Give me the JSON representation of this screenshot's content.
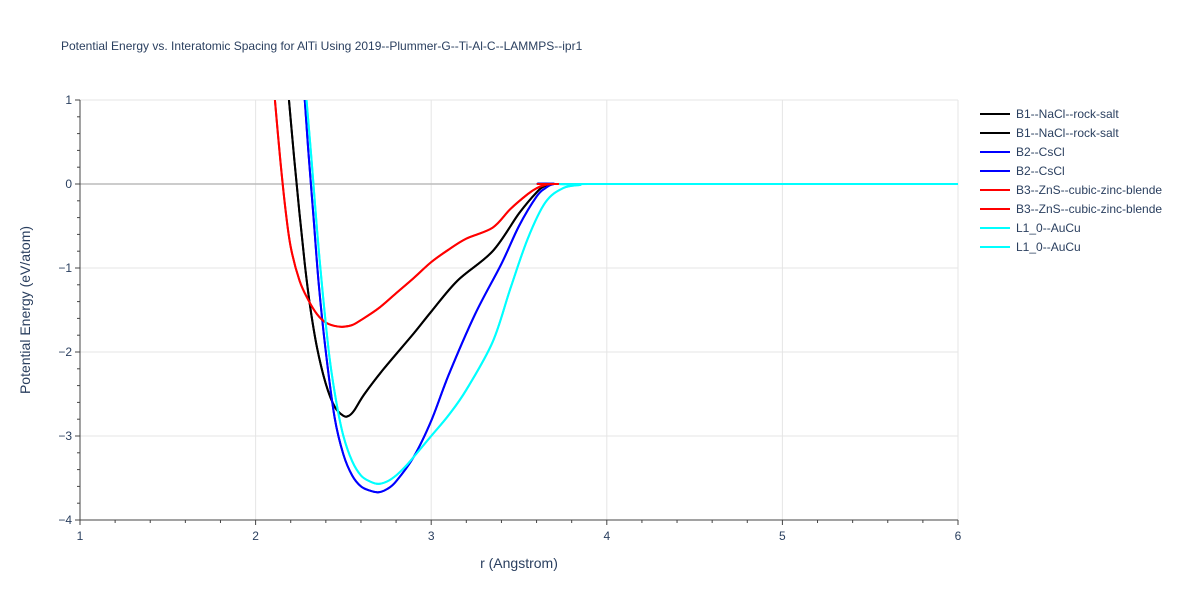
{
  "chart_data": {
    "type": "line",
    "title": "Potential Energy vs. Interatomic Spacing for AlTi Using 2019--Plummer-G--Ti-Al-C--LAMMPS--ipr1",
    "xlabel": "r (Angstrom)",
    "ylabel": "Potential Energy (eV/atom)",
    "xlim": [
      1,
      6
    ],
    "ylim": [
      -4,
      1
    ],
    "xticks": [
      1,
      2,
      3,
      4,
      5,
      6
    ],
    "yticks": [
      -4,
      -3,
      -2,
      -1,
      0,
      1
    ],
    "xtick_labels": [
      "1",
      "2",
      "3",
      "4",
      "5",
      "6"
    ],
    "ytick_labels": [
      "−4",
      "−3",
      "−2",
      "−1",
      "0",
      "1"
    ],
    "grid": true,
    "legend_position": "right",
    "series": [
      {
        "name": "B1--NaCl--rock-salt",
        "color": "#000000",
        "x": [
          2.19,
          2.22,
          2.25,
          2.28,
          2.31,
          2.35,
          2.4,
          2.45,
          2.5,
          2.53,
          2.56,
          2.62,
          2.73,
          2.9,
          3.0,
          3.15,
          3.35,
          3.5,
          3.6,
          3.65,
          3.7,
          3.8,
          6.0
        ],
        "y": [
          1.0,
          0.3,
          -0.35,
          -0.95,
          -1.45,
          -1.95,
          -2.38,
          -2.65,
          -2.76,
          -2.76,
          -2.7,
          -2.5,
          -2.2,
          -1.78,
          -1.52,
          -1.15,
          -0.8,
          -0.35,
          -0.1,
          -0.02,
          0.0,
          0.0,
          0.0
        ]
      },
      {
        "name": "B1--NaCl--rock-salt",
        "color": "#000000",
        "x": [
          2.19,
          2.22,
          2.25,
          2.28,
          2.31,
          2.35,
          2.4,
          2.45,
          2.5,
          2.53,
          2.56,
          2.62,
          2.73,
          2.9,
          3.0,
          3.15,
          3.35,
          3.5,
          3.6,
          3.65,
          3.7,
          3.8,
          6.0
        ],
        "y": [
          1.0,
          0.3,
          -0.35,
          -0.95,
          -1.45,
          -1.95,
          -2.38,
          -2.65,
          -2.76,
          -2.76,
          -2.7,
          -2.5,
          -2.2,
          -1.78,
          -1.52,
          -1.15,
          -0.8,
          -0.35,
          -0.1,
          -0.02,
          0.0,
          0.0,
          0.0
        ]
      },
      {
        "name": "B2--CsCl",
        "color": "#0000ff",
        "x": [
          2.28,
          2.3,
          2.33,
          2.36,
          2.4,
          2.45,
          2.5,
          2.55,
          2.6,
          2.65,
          2.7,
          2.75,
          2.8,
          2.9,
          3.0,
          3.1,
          3.25,
          3.4,
          3.5,
          3.6,
          3.65,
          3.7,
          3.8,
          6.0
        ],
        "y": [
          1.0,
          0.4,
          -0.4,
          -1.2,
          -2.0,
          -2.78,
          -3.22,
          -3.47,
          -3.6,
          -3.65,
          -3.67,
          -3.63,
          -3.54,
          -3.25,
          -2.82,
          -2.27,
          -1.55,
          -0.95,
          -0.5,
          -0.15,
          -0.05,
          0.0,
          0.0,
          0.0
        ]
      },
      {
        "name": "B2--CsCl",
        "color": "#0000ff",
        "x": [
          2.28,
          2.3,
          2.33,
          2.36,
          2.4,
          2.45,
          2.5,
          2.55,
          2.6,
          2.65,
          2.7,
          2.75,
          2.8,
          2.9,
          3.0,
          3.1,
          3.25,
          3.4,
          3.5,
          3.6,
          3.65,
          3.7,
          3.8,
          6.0
        ],
        "y": [
          1.0,
          0.4,
          -0.4,
          -1.2,
          -2.0,
          -2.78,
          -3.22,
          -3.47,
          -3.6,
          -3.65,
          -3.67,
          -3.63,
          -3.54,
          -3.25,
          -2.82,
          -2.27,
          -1.55,
          -0.95,
          -0.5,
          -0.15,
          -0.05,
          0.0,
          0.0,
          0.0
        ]
      },
      {
        "name": "B3--ZnS--cubic-zinc-blende",
        "color": "#ff0000",
        "x": [
          2.11,
          2.14,
          2.17,
          2.2,
          2.25,
          2.3,
          2.35,
          2.4,
          2.45,
          2.5,
          2.55,
          2.6,
          2.7,
          2.8,
          2.9,
          3.0,
          3.1,
          3.2,
          3.35,
          3.45,
          3.55,
          3.6,
          3.65,
          3.7,
          3.8,
          6.0
        ],
        "y": [
          1.0,
          0.3,
          -0.3,
          -0.75,
          -1.15,
          -1.38,
          -1.55,
          -1.65,
          -1.69,
          -1.7,
          -1.68,
          -1.62,
          -1.48,
          -1.3,
          -1.12,
          -0.93,
          -0.78,
          -0.65,
          -0.52,
          -0.3,
          -0.12,
          -0.05,
          -0.01,
          0.0,
          0.0,
          0.0
        ]
      },
      {
        "name": "B3--ZnS--cubic-zinc-blende",
        "color": "#ff0000",
        "x": [
          2.11,
          2.14,
          2.17,
          2.2,
          2.25,
          2.3,
          2.35,
          2.4,
          2.45,
          2.5,
          2.55,
          2.6,
          2.7,
          2.8,
          2.9,
          3.0,
          3.1,
          3.2,
          3.35,
          3.45,
          3.55,
          3.6,
          3.65,
          3.7,
          3.8,
          6.0
        ],
        "y": [
          1.0,
          0.3,
          -0.3,
          -0.75,
          -1.15,
          -1.38,
          -1.55,
          -1.65,
          -1.69,
          -1.7,
          -1.68,
          -1.62,
          -1.48,
          -1.3,
          -1.12,
          -0.93,
          -0.78,
          -0.65,
          -0.52,
          -0.3,
          -0.12,
          -0.05,
          -0.01,
          0.0,
          0.0,
          0.0
        ]
      },
      {
        "name": "L1_0--AuCu",
        "color": "#00ffff",
        "x": [
          2.29,
          2.32,
          2.35,
          2.38,
          2.42,
          2.46,
          2.5,
          2.55,
          2.6,
          2.65,
          2.7,
          2.75,
          2.8,
          2.85,
          2.9,
          3.0,
          3.1,
          3.2,
          3.35,
          3.45,
          3.55,
          3.65,
          3.75,
          3.85,
          3.9,
          6.0
        ],
        "y": [
          1.0,
          0.25,
          -0.55,
          -1.25,
          -2.05,
          -2.6,
          -3.0,
          -3.3,
          -3.47,
          -3.54,
          -3.57,
          -3.54,
          -3.47,
          -3.37,
          -3.25,
          -3.0,
          -2.75,
          -2.45,
          -1.88,
          -1.25,
          -0.65,
          -0.22,
          -0.05,
          -0.01,
          0.0,
          0.0
        ]
      },
      {
        "name": "L1_0--AuCu",
        "color": "#00ffff",
        "x": [
          2.29,
          2.32,
          2.35,
          2.38,
          2.42,
          2.46,
          2.5,
          2.55,
          2.6,
          2.65,
          2.7,
          2.75,
          2.8,
          2.85,
          2.9,
          3.0,
          3.1,
          3.2,
          3.35,
          3.45,
          3.55,
          3.65,
          3.75,
          3.85,
          3.9,
          6.0
        ],
        "y": [
          1.0,
          0.25,
          -0.55,
          -1.25,
          -2.05,
          -2.6,
          -3.0,
          -3.3,
          -3.47,
          -3.54,
          -3.57,
          -3.54,
          -3.47,
          -3.37,
          -3.25,
          -3.0,
          -2.75,
          -2.45,
          -1.88,
          -1.25,
          -0.65,
          -0.22,
          -0.05,
          -0.01,
          0.0,
          0.0
        ]
      }
    ]
  }
}
